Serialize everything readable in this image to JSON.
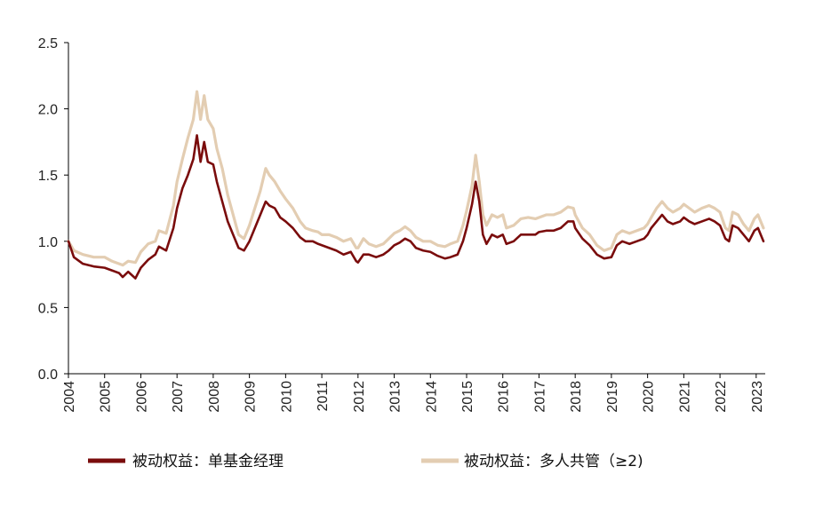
{
  "chart_data": {
    "type": "line",
    "title": "",
    "xlabel": "",
    "ylabel": "",
    "ylim": [
      0.0,
      2.5
    ],
    "y_ticks": [
      "0.0",
      "0.5",
      "1.0",
      "1.5",
      "2.0",
      "2.5"
    ],
    "x_ticks": [
      "2004",
      "2005",
      "2006",
      "2007",
      "2008",
      "2009",
      "2010",
      "2011",
      "2012",
      "2013",
      "2014",
      "2015",
      "2016",
      "2017",
      "2018",
      "2019",
      "2020",
      "2021",
      "2022",
      "2023"
    ],
    "xlim": [
      2004.0,
      2023.25
    ],
    "grid": false,
    "legend_position": "bottom",
    "series": [
      {
        "name": "被动权益：单基金经理",
        "color": "#7a0c0c",
        "points": [
          [
            2004.0,
            1.0
          ],
          [
            2004.15,
            0.88
          ],
          [
            2004.4,
            0.83
          ],
          [
            2004.7,
            0.81
          ],
          [
            2005.0,
            0.8
          ],
          [
            2005.2,
            0.78
          ],
          [
            2005.4,
            0.76
          ],
          [
            2005.5,
            0.73
          ],
          [
            2005.65,
            0.77
          ],
          [
            2005.85,
            0.72
          ],
          [
            2006.0,
            0.8
          ],
          [
            2006.2,
            0.86
          ],
          [
            2006.4,
            0.9
          ],
          [
            2006.5,
            0.96
          ],
          [
            2006.7,
            0.93
          ],
          [
            2006.9,
            1.1
          ],
          [
            2007.0,
            1.25
          ],
          [
            2007.15,
            1.4
          ],
          [
            2007.3,
            1.5
          ],
          [
            2007.45,
            1.62
          ],
          [
            2007.55,
            1.8
          ],
          [
            2007.65,
            1.6
          ],
          [
            2007.75,
            1.75
          ],
          [
            2007.85,
            1.6
          ],
          [
            2008.0,
            1.58
          ],
          [
            2008.1,
            1.45
          ],
          [
            2008.25,
            1.3
          ],
          [
            2008.4,
            1.15
          ],
          [
            2008.55,
            1.05
          ],
          [
            2008.7,
            0.95
          ],
          [
            2008.85,
            0.93
          ],
          [
            2009.0,
            1.0
          ],
          [
            2009.15,
            1.1
          ],
          [
            2009.3,
            1.2
          ],
          [
            2009.45,
            1.3
          ],
          [
            2009.55,
            1.27
          ],
          [
            2009.7,
            1.25
          ],
          [
            2009.85,
            1.18
          ],
          [
            2010.0,
            1.15
          ],
          [
            2010.2,
            1.1
          ],
          [
            2010.4,
            1.03
          ],
          [
            2010.55,
            1.0
          ],
          [
            2010.75,
            1.0
          ],
          [
            2010.9,
            0.98
          ],
          [
            2011.0,
            0.97
          ],
          [
            2011.2,
            0.95
          ],
          [
            2011.4,
            0.93
          ],
          [
            2011.6,
            0.9
          ],
          [
            2011.8,
            0.92
          ],
          [
            2011.95,
            0.85
          ],
          [
            2012.0,
            0.84
          ],
          [
            2012.15,
            0.9
          ],
          [
            2012.3,
            0.9
          ],
          [
            2012.5,
            0.88
          ],
          [
            2012.7,
            0.9
          ],
          [
            2012.85,
            0.93
          ],
          [
            2013.0,
            0.97
          ],
          [
            2013.15,
            0.99
          ],
          [
            2013.3,
            1.02
          ],
          [
            2013.45,
            1.0
          ],
          [
            2013.6,
            0.95
          ],
          [
            2013.8,
            0.93
          ],
          [
            2014.0,
            0.92
          ],
          [
            2014.2,
            0.89
          ],
          [
            2014.4,
            0.87
          ],
          [
            2014.55,
            0.88
          ],
          [
            2014.75,
            0.9
          ],
          [
            2014.9,
            1.0
          ],
          [
            2015.0,
            1.1
          ],
          [
            2015.15,
            1.28
          ],
          [
            2015.25,
            1.45
          ],
          [
            2015.35,
            1.3
          ],
          [
            2015.45,
            1.05
          ],
          [
            2015.55,
            0.98
          ],
          [
            2015.7,
            1.05
          ],
          [
            2015.85,
            1.03
          ],
          [
            2016.0,
            1.05
          ],
          [
            2016.1,
            0.98
          ],
          [
            2016.3,
            1.0
          ],
          [
            2016.5,
            1.05
          ],
          [
            2016.7,
            1.05
          ],
          [
            2016.9,
            1.05
          ],
          [
            2017.0,
            1.07
          ],
          [
            2017.2,
            1.08
          ],
          [
            2017.4,
            1.08
          ],
          [
            2017.6,
            1.1
          ],
          [
            2017.8,
            1.15
          ],
          [
            2017.95,
            1.15
          ],
          [
            2018.0,
            1.1
          ],
          [
            2018.2,
            1.02
          ],
          [
            2018.4,
            0.97
          ],
          [
            2018.6,
            0.9
          ],
          [
            2018.8,
            0.87
          ],
          [
            2019.0,
            0.88
          ],
          [
            2019.15,
            0.97
          ],
          [
            2019.3,
            1.0
          ],
          [
            2019.5,
            0.98
          ],
          [
            2019.7,
            1.0
          ],
          [
            2019.9,
            1.02
          ],
          [
            2020.0,
            1.05
          ],
          [
            2020.1,
            1.1
          ],
          [
            2020.25,
            1.15
          ],
          [
            2020.4,
            1.2
          ],
          [
            2020.55,
            1.15
          ],
          [
            2020.7,
            1.13
          ],
          [
            2020.9,
            1.15
          ],
          [
            2021.0,
            1.18
          ],
          [
            2021.15,
            1.15
          ],
          [
            2021.3,
            1.13
          ],
          [
            2021.5,
            1.15
          ],
          [
            2021.7,
            1.17
          ],
          [
            2021.85,
            1.15
          ],
          [
            2022.0,
            1.12
          ],
          [
            2022.15,
            1.02
          ],
          [
            2022.25,
            1.0
          ],
          [
            2022.35,
            1.12
          ],
          [
            2022.5,
            1.1
          ],
          [
            2022.65,
            1.05
          ],
          [
            2022.8,
            1.0
          ],
          [
            2022.95,
            1.08
          ],
          [
            2023.05,
            1.1
          ],
          [
            2023.2,
            1.0
          ]
        ]
      },
      {
        "name": "被动权益：多人共管（≥2)",
        "color": "#e3cdb2",
        "points": [
          [
            2004.0,
            1.0
          ],
          [
            2004.15,
            0.93
          ],
          [
            2004.4,
            0.9
          ],
          [
            2004.7,
            0.88
          ],
          [
            2005.0,
            0.88
          ],
          [
            2005.2,
            0.85
          ],
          [
            2005.4,
            0.83
          ],
          [
            2005.5,
            0.82
          ],
          [
            2005.65,
            0.85
          ],
          [
            2005.85,
            0.84
          ],
          [
            2006.0,
            0.92
          ],
          [
            2006.2,
            0.98
          ],
          [
            2006.4,
            1.0
          ],
          [
            2006.5,
            1.08
          ],
          [
            2006.7,
            1.06
          ],
          [
            2006.9,
            1.27
          ],
          [
            2007.0,
            1.45
          ],
          [
            2007.15,
            1.62
          ],
          [
            2007.3,
            1.78
          ],
          [
            2007.45,
            1.92
          ],
          [
            2007.55,
            2.13
          ],
          [
            2007.65,
            1.92
          ],
          [
            2007.75,
            2.1
          ],
          [
            2007.85,
            1.92
          ],
          [
            2008.0,
            1.85
          ],
          [
            2008.1,
            1.7
          ],
          [
            2008.25,
            1.55
          ],
          [
            2008.4,
            1.35
          ],
          [
            2008.55,
            1.2
          ],
          [
            2008.7,
            1.05
          ],
          [
            2008.85,
            1.02
          ],
          [
            2009.0,
            1.12
          ],
          [
            2009.15,
            1.25
          ],
          [
            2009.3,
            1.38
          ],
          [
            2009.45,
            1.55
          ],
          [
            2009.55,
            1.5
          ],
          [
            2009.7,
            1.45
          ],
          [
            2009.85,
            1.38
          ],
          [
            2010.0,
            1.32
          ],
          [
            2010.2,
            1.25
          ],
          [
            2010.4,
            1.15
          ],
          [
            2010.55,
            1.1
          ],
          [
            2010.75,
            1.08
          ],
          [
            2010.9,
            1.07
          ],
          [
            2011.0,
            1.05
          ],
          [
            2011.2,
            1.05
          ],
          [
            2011.4,
            1.03
          ],
          [
            2011.6,
            1.0
          ],
          [
            2011.8,
            1.02
          ],
          [
            2011.95,
            0.95
          ],
          [
            2012.0,
            0.95
          ],
          [
            2012.15,
            1.02
          ],
          [
            2012.3,
            0.98
          ],
          [
            2012.5,
            0.96
          ],
          [
            2012.7,
            0.98
          ],
          [
            2012.85,
            1.02
          ],
          [
            2013.0,
            1.06
          ],
          [
            2013.15,
            1.08
          ],
          [
            2013.3,
            1.11
          ],
          [
            2013.45,
            1.08
          ],
          [
            2013.6,
            1.03
          ],
          [
            2013.8,
            1.0
          ],
          [
            2014.0,
            1.0
          ],
          [
            2014.2,
            0.97
          ],
          [
            2014.4,
            0.96
          ],
          [
            2014.55,
            0.98
          ],
          [
            2014.75,
            1.0
          ],
          [
            2014.9,
            1.12
          ],
          [
            2015.0,
            1.23
          ],
          [
            2015.15,
            1.42
          ],
          [
            2015.25,
            1.65
          ],
          [
            2015.35,
            1.45
          ],
          [
            2015.45,
            1.2
          ],
          [
            2015.55,
            1.12
          ],
          [
            2015.7,
            1.2
          ],
          [
            2015.85,
            1.18
          ],
          [
            2016.0,
            1.2
          ],
          [
            2016.1,
            1.1
          ],
          [
            2016.3,
            1.12
          ],
          [
            2016.5,
            1.17
          ],
          [
            2016.7,
            1.18
          ],
          [
            2016.9,
            1.17
          ],
          [
            2017.0,
            1.18
          ],
          [
            2017.2,
            1.2
          ],
          [
            2017.4,
            1.2
          ],
          [
            2017.6,
            1.22
          ],
          [
            2017.8,
            1.26
          ],
          [
            2017.95,
            1.25
          ],
          [
            2018.0,
            1.2
          ],
          [
            2018.2,
            1.1
          ],
          [
            2018.4,
            1.05
          ],
          [
            2018.6,
            0.97
          ],
          [
            2018.8,
            0.93
          ],
          [
            2019.0,
            0.95
          ],
          [
            2019.15,
            1.05
          ],
          [
            2019.3,
            1.08
          ],
          [
            2019.5,
            1.06
          ],
          [
            2019.7,
            1.08
          ],
          [
            2019.9,
            1.1
          ],
          [
            2020.0,
            1.13
          ],
          [
            2020.1,
            1.18
          ],
          [
            2020.25,
            1.25
          ],
          [
            2020.4,
            1.3
          ],
          [
            2020.55,
            1.25
          ],
          [
            2020.7,
            1.22
          ],
          [
            2020.9,
            1.25
          ],
          [
            2021.0,
            1.28
          ],
          [
            2021.15,
            1.25
          ],
          [
            2021.3,
            1.22
          ],
          [
            2021.5,
            1.25
          ],
          [
            2021.7,
            1.27
          ],
          [
            2021.85,
            1.25
          ],
          [
            2022.0,
            1.22
          ],
          [
            2022.15,
            1.1
          ],
          [
            2022.25,
            1.08
          ],
          [
            2022.35,
            1.22
          ],
          [
            2022.5,
            1.2
          ],
          [
            2022.65,
            1.13
          ],
          [
            2022.8,
            1.08
          ],
          [
            2022.95,
            1.17
          ],
          [
            2023.05,
            1.2
          ],
          [
            2023.2,
            1.1
          ]
        ]
      }
    ]
  }
}
